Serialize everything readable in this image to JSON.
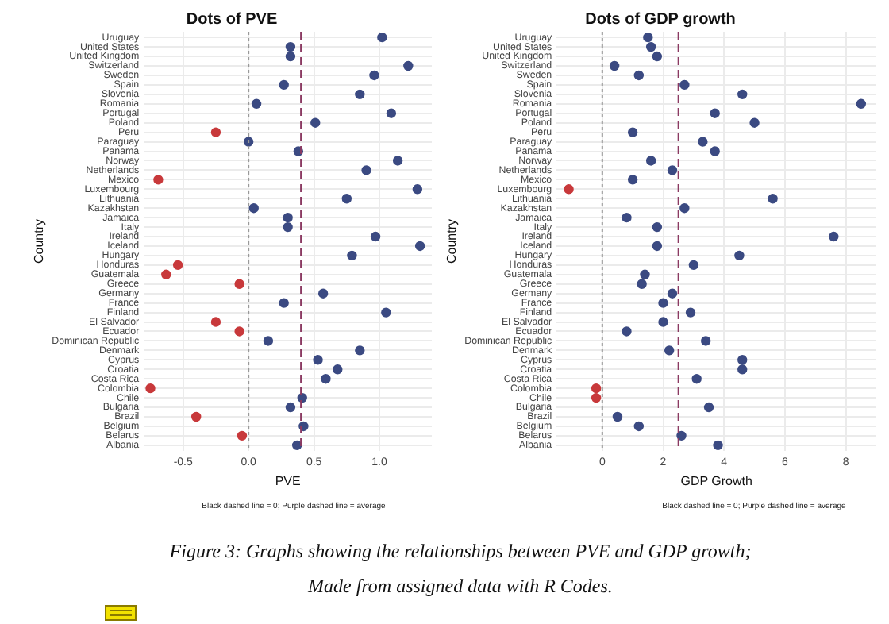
{
  "chart_data": [
    {
      "type": "scatter",
      "orientation": "horizontal",
      "title": "Dots of PVE",
      "xlabel": "PVE",
      "ylabel": "Country",
      "categories": [
        "Uruguay",
        "United States",
        "United Kingdom",
        "Switzerland",
        "Sweden",
        "Spain",
        "Slovenia",
        "Romania",
        "Portugal",
        "Poland",
        "Peru",
        "Paraguay",
        "Panama",
        "Norway",
        "Netherlands",
        "Mexico",
        "Luxembourg",
        "Lithuania",
        "Kazakhstan",
        "Jamaica",
        "Italy",
        "Ireland",
        "Iceland",
        "Hungary",
        "Honduras",
        "Guatemala",
        "Greece",
        "Germany",
        "France",
        "Finland",
        "El Salvador",
        "Ecuador",
        "Dominican Republic",
        "Denmark",
        "Cyprus",
        "Croatia",
        "Costa Rica",
        "Colombia",
        "Chile",
        "Bulgaria",
        "Brazil",
        "Belgium",
        "Belarus",
        "Albania"
      ],
      "values": [
        1.02,
        0.32,
        0.32,
        1.22,
        0.96,
        0.27,
        0.85,
        0.06,
        1.09,
        0.51,
        -0.25,
        0.0,
        0.38,
        1.14,
        0.9,
        -0.69,
        1.29,
        0.75,
        0.04,
        0.3,
        0.3,
        0.97,
        1.31,
        0.79,
        -0.54,
        -0.63,
        -0.07,
        0.57,
        0.27,
        1.05,
        -0.25,
        -0.07,
        0.15,
        0.85,
        0.53,
        0.68,
        0.59,
        -0.75,
        0.41,
        0.32,
        -0.4,
        0.42,
        -0.05,
        0.37
      ],
      "colors": [
        "#3b4a82",
        "#3b4a82",
        "#3b4a82",
        "#3b4a82",
        "#3b4a82",
        "#3b4a82",
        "#3b4a82",
        "#3b4a82",
        "#3b4a82",
        "#3b4a82",
        "#c8393b",
        "#3b4a82",
        "#3b4a82",
        "#3b4a82",
        "#3b4a82",
        "#c8393b",
        "#3b4a82",
        "#3b4a82",
        "#3b4a82",
        "#3b4a82",
        "#3b4a82",
        "#3b4a82",
        "#3b4a82",
        "#3b4a82",
        "#c8393b",
        "#c8393b",
        "#c8393b",
        "#3b4a82",
        "#3b4a82",
        "#3b4a82",
        "#c8393b",
        "#c8393b",
        "#3b4a82",
        "#3b4a82",
        "#3b4a82",
        "#3b4a82",
        "#3b4a82",
        "#c8393b",
        "#3b4a82",
        "#3b4a82",
        "#c8393b",
        "#3b4a82",
        "#c8393b",
        "#3b4a82"
      ],
      "xlim": [
        -0.8,
        1.4
      ],
      "xticks": [
        {
          "value": -0.5,
          "label": "-0.5"
        },
        {
          "value": 0,
          "label": "0.0"
        },
        {
          "value": 0.5,
          "label": "0.5"
        },
        {
          "value": 1,
          "label": "1.0"
        }
      ],
      "grid": true,
      "marker": "circle",
      "ref_lines": [
        {
          "axis": "x",
          "value": 0,
          "label": null,
          "color": "#999999",
          "line_style": "dotted"
        },
        {
          "axis": "x",
          "value": 0.4,
          "label": null,
          "color": "#8b3a62",
          "line_style": "dashed"
        }
      ],
      "annotations": [
        "Black dashed line = 0; Purple dashed line = average",
        "Figure 3: Graphs showing the relationships between PVE and GDP growth; Made from assigned data with R Codes."
      ]
    },
    {
      "type": "scatter",
      "orientation": "horizontal",
      "title": "Dots of GDP growth",
      "xlabel": "GDP Growth",
      "ylabel": "Country",
      "categories": [
        "Uruguay",
        "United States",
        "United Kingdom",
        "Switzerland",
        "Sweden",
        "Spain",
        "Slovenia",
        "Romania",
        "Portugal",
        "Poland",
        "Peru",
        "Paraguay",
        "Panama",
        "Norway",
        "Netherlands",
        "Mexico",
        "Luxembourg",
        "Lithuania",
        "Kazakhstan",
        "Jamaica",
        "Italy",
        "Ireland",
        "Iceland",
        "Hungary",
        "Honduras",
        "Guatemala",
        "Greece",
        "Germany",
        "France",
        "Finland",
        "El Salvador",
        "Ecuador",
        "Dominican Republic",
        "Denmark",
        "Cyprus",
        "Croatia",
        "Costa Rica",
        "Colombia",
        "Chile",
        "Bulgaria",
        "Brazil",
        "Belgium",
        "Belarus",
        "Albania"
      ],
      "values": [
        1.5,
        1.6,
        1.8,
        0.4,
        1.2,
        2.7,
        4.6,
        8.5,
        3.7,
        5.0,
        1.0,
        3.3,
        3.7,
        1.6,
        2.3,
        1.0,
        -1.1,
        5.6,
        2.7,
        0.8,
        1.8,
        7.6,
        1.8,
        4.5,
        3.0,
        1.4,
        1.3,
        2.3,
        2.0,
        2.9,
        2.0,
        0.8,
        3.4,
        2.2,
        4.6,
        4.6,
        3.1,
        -0.2,
        -0.2,
        3.5,
        0.5,
        1.2,
        2.6,
        3.8
      ],
      "colors": [
        "#3b4a82",
        "#3b4a82",
        "#3b4a82",
        "#3b4a82",
        "#3b4a82",
        "#3b4a82",
        "#3b4a82",
        "#3b4a82",
        "#3b4a82",
        "#3b4a82",
        "#3b4a82",
        "#3b4a82",
        "#3b4a82",
        "#3b4a82",
        "#3b4a82",
        "#3b4a82",
        "#c8393b",
        "#3b4a82",
        "#3b4a82",
        "#3b4a82",
        "#3b4a82",
        "#3b4a82",
        "#3b4a82",
        "#3b4a82",
        "#3b4a82",
        "#3b4a82",
        "#3b4a82",
        "#3b4a82",
        "#3b4a82",
        "#3b4a82",
        "#3b4a82",
        "#3b4a82",
        "#3b4a82",
        "#3b4a82",
        "#3b4a82",
        "#3b4a82",
        "#3b4a82",
        "#c8393b",
        "#c8393b",
        "#3b4a82",
        "#3b4a82",
        "#3b4a82",
        "#3b4a82",
        "#3b4a82"
      ],
      "xlim": [
        -1.5,
        9
      ],
      "xticks": [
        0,
        2,
        4,
        6,
        8
      ],
      "grid": true,
      "marker": "circle",
      "ref_lines": [
        {
          "axis": "x",
          "value": 0,
          "label": null,
          "color": "#999999",
          "line_style": "dotted"
        },
        {
          "axis": "x",
          "value": 2.5,
          "label": null,
          "color": "#8b3a62",
          "line_style": "dashed"
        }
      ],
      "annotations": [
        "Black dashed line = 0; Purple dashed line = average"
      ]
    }
  ]
}
